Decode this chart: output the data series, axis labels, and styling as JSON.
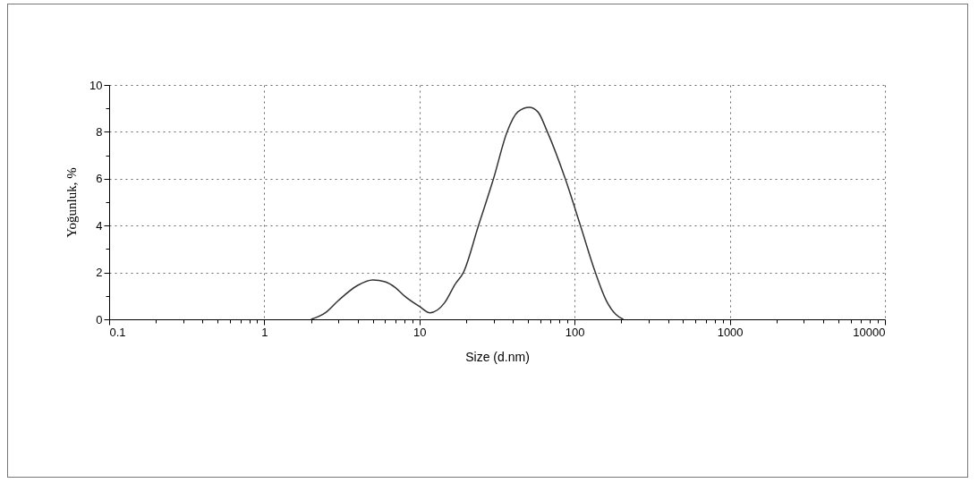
{
  "chart_data": {
    "type": "line",
    "xlabel": "Size (d.nm)",
    "ylabel": "Yoğunluk, %",
    "log": "x",
    "grid": true,
    "line_style": "solid",
    "marker": "none",
    "xlim": [
      0.1,
      10000
    ],
    "ylim": [
      0,
      10
    ],
    "xticks": [
      0.1,
      {
        "value": 0.2,
        "label": null
      },
      {
        "value": 0.3,
        "label": null
      },
      {
        "value": 0.4,
        "label": null
      },
      {
        "value": 0.5,
        "label": null
      },
      {
        "value": 0.6,
        "label": null
      },
      {
        "value": 0.7,
        "label": null
      },
      {
        "value": 0.8,
        "label": null
      },
      {
        "value": 0.9,
        "label": null
      },
      1,
      {
        "value": 2,
        "label": null
      },
      {
        "value": 3,
        "label": null
      },
      {
        "value": 4,
        "label": null
      },
      {
        "value": 5,
        "label": null
      },
      {
        "value": 6,
        "label": null
      },
      {
        "value": 7,
        "label": null
      },
      {
        "value": 8,
        "label": null
      },
      {
        "value": 9,
        "label": null
      },
      10,
      {
        "value": 20,
        "label": null
      },
      {
        "value": 30,
        "label": null
      },
      {
        "value": 40,
        "label": null
      },
      {
        "value": 50,
        "label": null
      },
      {
        "value": 60,
        "label": null
      },
      {
        "value": 70,
        "label": null
      },
      {
        "value": 80,
        "label": null
      },
      {
        "value": 90,
        "label": null
      },
      100,
      {
        "value": 200,
        "label": null
      },
      {
        "value": 300,
        "label": null
      },
      {
        "value": 400,
        "label": null
      },
      {
        "value": 500,
        "label": null
      },
      {
        "value": 600,
        "label": null
      },
      {
        "value": 700,
        "label": null
      },
      {
        "value": 800,
        "label": null
      },
      {
        "value": 900,
        "label": null
      },
      1000,
      {
        "value": 2000,
        "label": null
      },
      {
        "value": 3000,
        "label": null
      },
      {
        "value": 4000,
        "label": null
      },
      {
        "value": 5000,
        "label": null
      },
      {
        "value": 6000,
        "label": null
      },
      {
        "value": 7000,
        "label": null
      },
      {
        "value": 8000,
        "label": null
      },
      {
        "value": 9000,
        "label": null
      },
      10000
    ],
    "yticks": [
      0,
      {
        "value": 1,
        "label": null
      },
      2,
      {
        "value": 3,
        "label": null
      },
      4,
      {
        "value": 5,
        "label": null
      },
      6,
      {
        "value": 7,
        "label": null
      },
      8,
      {
        "value": 9,
        "label": null
      },
      10
    ],
    "x": [
      2,
      2.5,
      3,
      4,
      5,
      6,
      7,
      8,
      10,
      11.7,
      14.5,
      17,
      19.2,
      24,
      30,
      36.7,
      43,
      51,
      58,
      66.7,
      87,
      109,
      136,
      160,
      185,
      206
    ],
    "series": [
      {
        "color": "#333333",
        "values": [
          0,
          0.3,
          0.8,
          1.45,
          1.68,
          1.6,
          1.35,
          1.0,
          0.55,
          0.28,
          0.7,
          1.5,
          2,
          4,
          6,
          8,
          8.85,
          9.05,
          8.85,
          8,
          6,
          4,
          2,
          0.8,
          0.2,
          0
        ]
      }
    ]
  }
}
